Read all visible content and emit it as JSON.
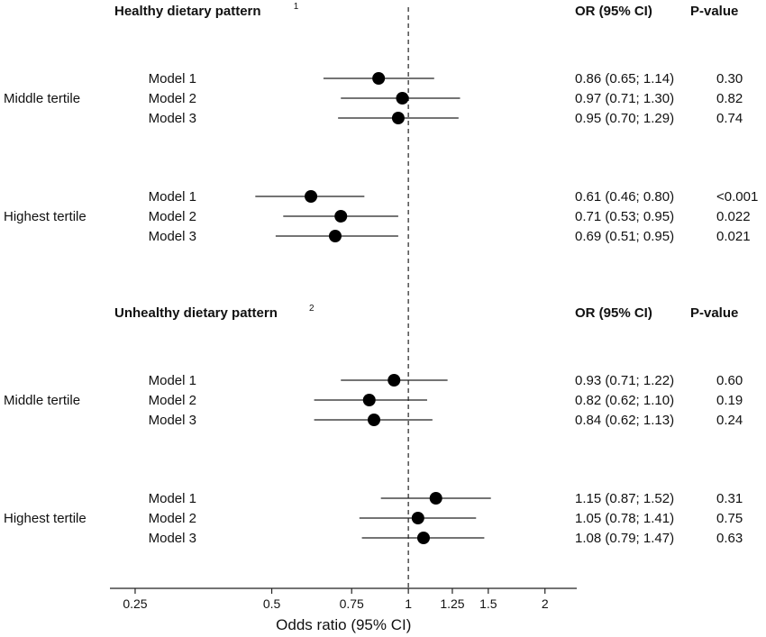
{
  "chart_data": {
    "type": "forest",
    "xscale": "log",
    "xlim": [
      0.22,
      2.35
    ],
    "reference_line": 1,
    "xlabel": "Odds ratio (95% CI)",
    "xticks": [
      0.25,
      0.5,
      0.75,
      1,
      1.25,
      1.5,
      2
    ],
    "xtick_labels": [
      "0.25",
      "0.5",
      "0.75",
      "1",
      "1.25",
      "1.5",
      "2"
    ],
    "sections": [
      {
        "title": "Healthy dietary pattern",
        "superscript": "1",
        "col_or_header": "OR (95% CI)",
        "col_p_header": "P-value",
        "groups": [
          {
            "label": "Middle tertile",
            "rows": [
              {
                "model": "Model 1",
                "or": 0.86,
                "lo": 0.65,
                "hi": 1.14,
                "or_text": "0.86 (0.65; 1.14)",
                "p": "0.30"
              },
              {
                "model": "Model 2",
                "or": 0.97,
                "lo": 0.71,
                "hi": 1.3,
                "or_text": "0.97 (0.71; 1.30)",
                "p": "0.82"
              },
              {
                "model": "Model 3",
                "or": 0.95,
                "lo": 0.7,
                "hi": 1.29,
                "or_text": "0.95 (0.70; 1.29)",
                "p": "0.74"
              }
            ]
          },
          {
            "label": "Highest tertile",
            "rows": [
              {
                "model": "Model 1",
                "or": 0.61,
                "lo": 0.46,
                "hi": 0.8,
                "or_text": "0.61 (0.46; 0.80)",
                "p": "<0.001"
              },
              {
                "model": "Model 2",
                "or": 0.71,
                "lo": 0.53,
                "hi": 0.95,
                "or_text": "0.71 (0.53; 0.95)",
                "p": "0.022"
              },
              {
                "model": "Model 3",
                "or": 0.69,
                "lo": 0.51,
                "hi": 0.95,
                "or_text": "0.69 (0.51; 0.95)",
                "p": "0.021"
              }
            ]
          }
        ]
      },
      {
        "title": "Unhealthy dietary pattern",
        "superscript": "2",
        "col_or_header": "OR (95% CI)",
        "col_p_header": "P-value",
        "groups": [
          {
            "label": "Middle tertile",
            "rows": [
              {
                "model": "Model 1",
                "or": 0.93,
                "lo": 0.71,
                "hi": 1.22,
                "or_text": "0.93 (0.71; 1.22)",
                "p": "0.60"
              },
              {
                "model": "Model 2",
                "or": 0.82,
                "lo": 0.62,
                "hi": 1.1,
                "or_text": "0.82 (0.62; 1.10)",
                "p": "0.19"
              },
              {
                "model": "Model 3",
                "or": 0.84,
                "lo": 0.62,
                "hi": 1.13,
                "or_text": "0.84 (0.62; 1.13)",
                "p": "0.24"
              }
            ]
          },
          {
            "label": "Highest tertile",
            "rows": [
              {
                "model": "Model 1",
                "or": 1.15,
                "lo": 0.87,
                "hi": 1.52,
                "or_text": "1.15 (0.87; 1.52)",
                "p": "0.31"
              },
              {
                "model": "Model 2",
                "or": 1.05,
                "lo": 0.78,
                "hi": 1.41,
                "or_text": "1.05 (0.78; 1.41)",
                "p": "0.75"
              },
              {
                "model": "Model 3",
                "or": 1.08,
                "lo": 0.79,
                "hi": 1.47,
                "or_text": "1.08 (0.79; 1.47)",
                "p": "0.63"
              }
            ]
          }
        ]
      }
    ]
  }
}
